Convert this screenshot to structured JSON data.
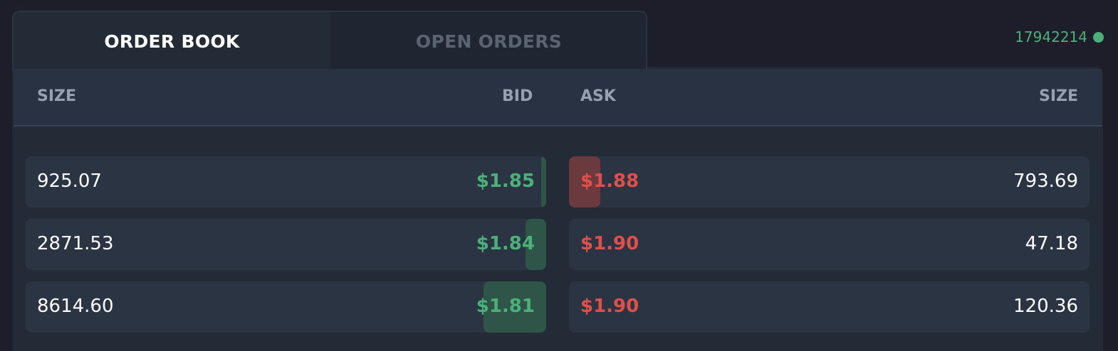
{
  "tabs": [
    {
      "label": "ORDER BOOK",
      "active": true
    },
    {
      "label": "OPEN ORDERS",
      "active": false
    }
  ],
  "status": {
    "block_number": "17942214",
    "dot_color": "#4bb07a"
  },
  "headers": {
    "bid_size": "SIZE",
    "bid": "BID",
    "ask": "ASK",
    "ask_size": "SIZE"
  },
  "bids": [
    {
      "size": "925.07",
      "price": "$1.85",
      "depth_fraction": 0.009
    },
    {
      "size": "2871.53",
      "price": "$1.84",
      "depth_fraction": 0.04
    },
    {
      "size": "8614.60",
      "price": "$1.81",
      "depth_fraction": 0.12
    }
  ],
  "asks": [
    {
      "price": "$1.88",
      "size": "793.69",
      "depth_fraction": 0.06
    },
    {
      "price": "$1.90",
      "size": "47.18",
      "depth_fraction": 0
    },
    {
      "price": "$1.90",
      "size": "120.36",
      "depth_fraction": 0
    }
  ],
  "colors": {
    "bid": "#4bb07a",
    "ask": "#e04f4a",
    "background": "#1d1e2a"
  }
}
